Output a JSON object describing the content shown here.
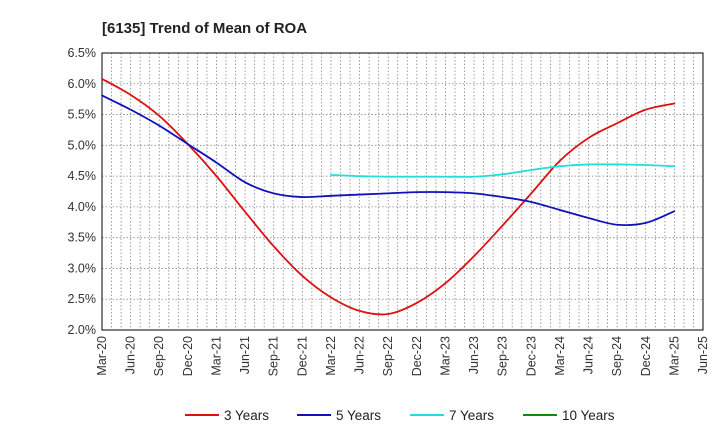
{
  "chart_data": {
    "type": "line",
    "title": "[6135]  Trend of Mean of ROA",
    "xlabel": "",
    "ylabel": "",
    "x": [
      "Mar-20",
      "Jun-20",
      "Sep-20",
      "Dec-20",
      "Mar-21",
      "Jun-21",
      "Sep-21",
      "Dec-21",
      "Mar-22",
      "Jun-22",
      "Sep-22",
      "Dec-22",
      "Mar-23",
      "Jun-23",
      "Sep-23",
      "Dec-23",
      "Mar-24",
      "Jun-24",
      "Sep-24",
      "Dec-24",
      "Mar-25",
      "Jun-25"
    ],
    "ylim": [
      2.0,
      6.5
    ],
    "yticks": [
      2.0,
      2.5,
      3.0,
      3.5,
      4.0,
      4.5,
      5.0,
      5.5,
      6.0,
      6.5
    ],
    "ytick_labels": [
      "2.0%",
      "2.5%",
      "3.0%",
      "3.5%",
      "4.0%",
      "4.5%",
      "5.0%",
      "5.5%",
      "6.0%",
      "6.5%"
    ],
    "grid": true,
    "legend_position": "bottom",
    "series": [
      {
        "name": "3 Years",
        "color": "#dd1111",
        "values": [
          6.08,
          5.82,
          5.48,
          5.02,
          4.5,
          3.92,
          3.36,
          2.88,
          2.53,
          2.31,
          2.26,
          2.44,
          2.76,
          3.2,
          3.7,
          4.22,
          4.75,
          5.12,
          5.36,
          5.58,
          5.68,
          null
        ]
      },
      {
        "name": "5 Years",
        "color": "#1111bb",
        "values": [
          5.81,
          5.58,
          5.32,
          5.02,
          4.72,
          4.4,
          4.22,
          4.16,
          4.18,
          4.2,
          4.22,
          4.24,
          4.24,
          4.22,
          4.16,
          4.08,
          3.95,
          3.82,
          3.71,
          3.74,
          3.93,
          null
        ]
      },
      {
        "name": "7 Years",
        "color": "#22dddd",
        "values": [
          null,
          null,
          null,
          null,
          null,
          null,
          null,
          null,
          4.52,
          4.5,
          4.49,
          4.49,
          4.49,
          4.49,
          4.53,
          4.6,
          4.66,
          4.69,
          4.69,
          4.68,
          4.66,
          null
        ]
      },
      {
        "name": "10 Years",
        "color": "#118811",
        "values": [
          null,
          null,
          null,
          null,
          null,
          null,
          null,
          null,
          null,
          null,
          null,
          null,
          null,
          null,
          null,
          null,
          null,
          null,
          null,
          null,
          null,
          null
        ]
      }
    ]
  }
}
